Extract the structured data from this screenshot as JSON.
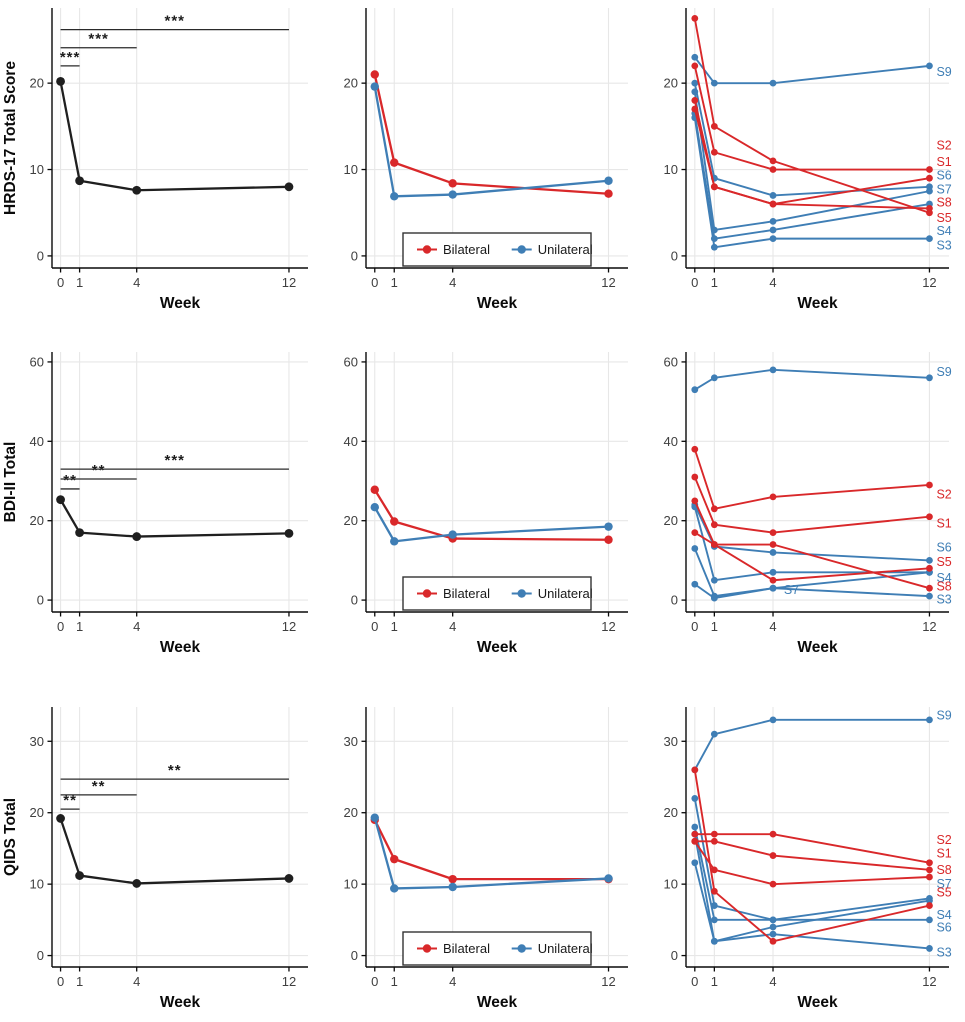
{
  "figure_title": "",
  "xlabel": "Week",
  "legend": {
    "items": [
      {
        "label": "Bilateral",
        "color_key": "bilateral"
      },
      {
        "label": "Unilateral",
        "color_key": "unilateral"
      }
    ]
  },
  "palette": {
    "bilateral": "#D9282A",
    "unilateral": "#3F7EB5",
    "mean_line": "#1F1F1F",
    "grid": "#E7E7E7",
    "axis": "#0A0A0A",
    "tick_label": "#3F3F3F",
    "sig_bar": "#2A2A2A",
    "legend_border": "#333333"
  },
  "chart_data": {
    "type": "line",
    "x_values": [
      0,
      1,
      4,
      12
    ],
    "x_tick_labels": [
      "0",
      "1",
      "4",
      "12"
    ],
    "xlim": [
      -0.45,
      13.0
    ],
    "grid": true,
    "rows": [
      {
        "ylabel": "HRDS-17 Total Score",
        "yticks": [
          0,
          10,
          20
        ],
        "ylim": [
          -1.4,
          28.7
        ],
        "mean_panel": {
          "values": [
            20.2,
            8.7,
            7.6,
            8.0
          ],
          "significance": [
            {
              "from_week": 0,
              "to_week": 1,
              "y": 22.0,
              "label": "***"
            },
            {
              "from_week": 0,
              "to_week": 4,
              "y": 24.1,
              "label": "***"
            },
            {
              "from_week": 0,
              "to_week": 12,
              "y": 26.2,
              "label": "***"
            }
          ]
        },
        "group_panel": {
          "legend": true,
          "series": [
            {
              "name": "Bilateral",
              "values": [
                21.0,
                10.8,
                8.4,
                7.2
              ]
            },
            {
              "name": "Unilateral",
              "values": [
                19.6,
                6.9,
                7.1,
                8.7
              ]
            }
          ]
        },
        "individual_panel": {
          "series": [
            {
              "name": "S3",
              "group": "Unilateral",
              "values": [
                16,
                1,
                2,
                2
              ],
              "label_y": 1.2
            },
            {
              "name": "S4",
              "group": "Unilateral",
              "values": [
                16.5,
                2,
                3,
                6
              ],
              "label_y": 2.9
            },
            {
              "name": "S6",
              "group": "Unilateral",
              "values": [
                20,
                9,
                7,
                8
              ],
              "label_y": 9.3
            },
            {
              "name": "S7",
              "group": "Unilateral",
              "values": [
                19,
                3,
                4,
                7.5
              ],
              "label_y": 7.7
            },
            {
              "name": "S9",
              "group": "Unilateral",
              "values": [
                23,
                20,
                20,
                22
              ],
              "label_y": 21.3
            },
            {
              "name": "S1",
              "group": "Bilateral",
              "values": [
                22,
                12,
                10,
                10
              ],
              "label_y": 10.9
            },
            {
              "name": "S2",
              "group": "Bilateral",
              "values": [
                18,
                8,
                6,
                9
              ],
              "label_y": 12.8
            },
            {
              "name": "S5",
              "group": "Bilateral",
              "values": [
                27.5,
                15,
                11,
                5
              ],
              "label_y": 4.4
            },
            {
              "name": "S8",
              "group": "Bilateral",
              "values": [
                17,
                8,
                6,
                5.5
              ],
              "label_y": 6.2
            }
          ]
        }
      },
      {
        "ylabel": "BDI-II Total",
        "yticks": [
          0,
          20,
          40,
          60
        ],
        "ylim": [
          -3.0,
          62.5
        ],
        "mean_panel": {
          "values": [
            25.3,
            17.0,
            16.0,
            16.8
          ],
          "significance": [
            {
              "from_week": 0,
              "to_week": 1,
              "y": 28.0,
              "label": "**"
            },
            {
              "from_week": 0,
              "to_week": 4,
              "y": 30.5,
              "label": "**"
            },
            {
              "from_week": 0,
              "to_week": 12,
              "y": 33.0,
              "label": "***"
            }
          ]
        },
        "group_panel": {
          "legend": true,
          "series": [
            {
              "name": "Bilateral",
              "values": [
                27.8,
                19.8,
                15.5,
                15.2
              ]
            },
            {
              "name": "Unilateral",
              "values": [
                23.4,
                14.8,
                16.5,
                18.5
              ]
            }
          ]
        },
        "individual_panel": {
          "series": [
            {
              "name": "S3",
              "group": "Unilateral",
              "values": [
                4,
                0.5,
                3,
                1
              ],
              "label_y": 0.2
            },
            {
              "name": "S4",
              "group": "Unilateral",
              "values": [
                23.5,
                5,
                7,
                7
              ],
              "label_y": 5.6
            },
            {
              "name": "S6",
              "group": "Unilateral",
              "values": [
                24,
                13.5,
                12,
                10
              ],
              "label_y": 13.2
            },
            {
              "name": "S7",
              "group": "Unilateral",
              "values": [
                13,
                1,
                3,
                7
              ],
              "label_x": 4.35,
              "label_y": 2.6
            },
            {
              "name": "S9",
              "group": "Unilateral",
              "values": [
                53,
                56,
                58,
                56
              ],
              "label_y": 57.5
            },
            {
              "name": "S1",
              "group": "Bilateral",
              "values": [
                31,
                19,
                17,
                21
              ],
              "label_y": 19.3
            },
            {
              "name": "S2",
              "group": "Bilateral",
              "values": [
                38,
                23,
                26,
                29
              ],
              "label_y": 26.6
            },
            {
              "name": "S5",
              "group": "Bilateral",
              "values": [
                17,
                14,
                5,
                8
              ],
              "label_y": 9.6
            },
            {
              "name": "S8",
              "group": "Bilateral",
              "values": [
                25,
                14,
                14,
                3
              ],
              "label_y": 3.4
            }
          ]
        }
      },
      {
        "ylabel": "QIDS Total",
        "yticks": [
          0,
          10,
          20,
          30
        ],
        "ylim": [
          -1.6,
          34.8
        ],
        "mean_panel": {
          "values": [
            19.2,
            11.2,
            10.1,
            10.8
          ],
          "significance": [
            {
              "from_week": 0,
              "to_week": 1,
              "y": 20.5,
              "label": "**"
            },
            {
              "from_week": 0,
              "to_week": 4,
              "y": 22.5,
              "label": "**"
            },
            {
              "from_week": 0,
              "to_week": 12,
              "y": 24.7,
              "label": "**"
            }
          ]
        },
        "group_panel": {
          "legend": true,
          "series": [
            {
              "name": "Bilateral",
              "values": [
                19.0,
                13.5,
                10.7,
                10.7
              ]
            },
            {
              "name": "Unilateral",
              "values": [
                19.3,
                9.4,
                9.6,
                10.8
              ]
            }
          ]
        },
        "individual_panel": {
          "series": [
            {
              "name": "S3",
              "group": "Unilateral",
              "values": [
                13,
                2,
                3,
                1
              ],
              "label_y": 0.4
            },
            {
              "name": "S4",
              "group": "Unilateral",
              "values": [
                18,
                5,
                5,
                5
              ],
              "label_y": 5.7
            },
            {
              "name": "S6",
              "group": "Unilateral",
              "values": [
                17,
                2,
                4,
                7.7
              ],
              "label_y": 3.9
            },
            {
              "name": "S7",
              "group": "Unilateral",
              "values": [
                22,
                7,
                5,
                8
              ],
              "label_y": 10.0
            },
            {
              "name": "S9",
              "group": "Unilateral",
              "values": [
                26,
                31,
                33,
                33
              ],
              "label_y": 33.6
            },
            {
              "name": "S1",
              "group": "Bilateral",
              "values": [
                16,
                16,
                14,
                12
              ],
              "label_y": 14.3
            },
            {
              "name": "S2",
              "group": "Bilateral",
              "values": [
                17,
                17,
                17,
                13
              ],
              "label_y": 16.2
            },
            {
              "name": "S5",
              "group": "Bilateral",
              "values": [
                26,
                9,
                2,
                7
              ],
              "label_y": 8.8
            },
            {
              "name": "S8",
              "group": "Bilateral",
              "values": [
                16,
                12,
                10,
                11
              ],
              "label_y": 12.0
            }
          ]
        }
      }
    ]
  }
}
